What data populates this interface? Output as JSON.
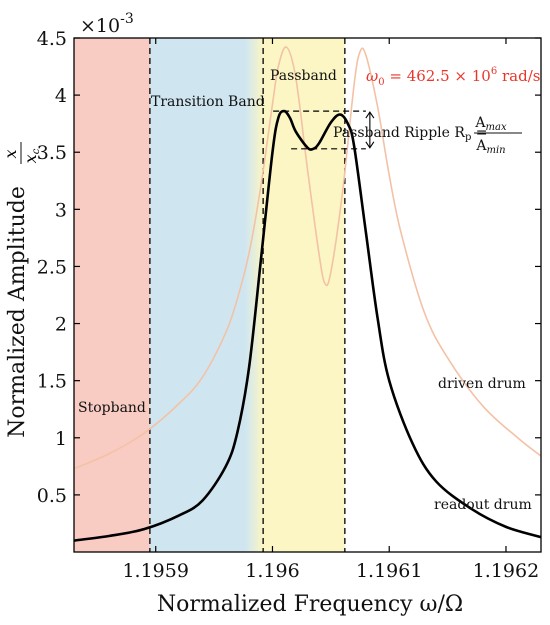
{
  "chart_data": {
    "type": "line",
    "xlabel": "Normalized Frequency ω/Ω",
    "ylabel": "Normalized Amplitude",
    "ylabel_fraction": {
      "num": "x",
      "den": "x",
      "den_sub": "c"
    },
    "y_exponent": {
      "base": "×10",
      "exp": "-3"
    },
    "xlim": [
      1.19583,
      1.19623
    ],
    "ylim": [
      0,
      4.5
    ],
    "x_ticks": [
      {
        "value": 1.1959,
        "label": "1.1959"
      },
      {
        "value": 1.196,
        "label": "1.196"
      },
      {
        "value": 1.1961,
        "label": "1.1961"
      },
      {
        "value": 1.1962,
        "label": "1.1962"
      }
    ],
    "y_ticks": [
      {
        "value": 0.5,
        "label": "0.5"
      },
      {
        "value": 1,
        "label": "1"
      },
      {
        "value": 1.5,
        "label": "1.5"
      },
      {
        "value": 2,
        "label": "2"
      },
      {
        "value": 2.5,
        "label": "2.5"
      },
      {
        "value": 3,
        "label": "3"
      },
      {
        "value": 3.5,
        "label": "3.5"
      },
      {
        "value": 4,
        "label": "4"
      },
      {
        "value": 4.5,
        "label": "4.5"
      }
    ],
    "grid": false,
    "bands": [
      {
        "name": "Stopband",
        "x0": 1.19583,
        "x1": 1.195895,
        "color": "#f8cbc3"
      },
      {
        "name": "Transition Band",
        "x0": 1.195895,
        "x1": 1.195992,
        "color": "#cfe6f1"
      },
      {
        "name": "Passband",
        "x0": 1.195992,
        "x1": 1.196062,
        "color": "#fbf6c4"
      }
    ],
    "vlines": [
      1.195895,
      1.195992,
      1.196062
    ],
    "series": [
      {
        "name": "driven drum",
        "color": "#f3c2a6",
        "points": [
          [
            1.19583,
            0.73
          ],
          [
            1.19586,
            0.86
          ],
          [
            1.19589,
            1.04
          ],
          [
            1.19592,
            1.3
          ],
          [
            1.19594,
            1.53
          ],
          [
            1.19596,
            1.92
          ],
          [
            1.19597,
            2.22
          ],
          [
            1.19598,
            2.62
          ],
          [
            1.19599,
            3.2
          ],
          [
            1.196,
            3.92
          ],
          [
            1.196005,
            4.25
          ],
          [
            1.196012,
            4.42
          ],
          [
            1.19602,
            4.15
          ],
          [
            1.19603,
            3.35
          ],
          [
            1.19604,
            2.6
          ],
          [
            1.196045,
            2.35
          ],
          [
            1.19605,
            2.45
          ],
          [
            1.19606,
            3.15
          ],
          [
            1.19607,
            4.1
          ],
          [
            1.196075,
            4.38
          ],
          [
            1.19608,
            4.35
          ],
          [
            1.19609,
            3.9
          ],
          [
            1.1961,
            3.3
          ],
          [
            1.19611,
            2.8
          ],
          [
            1.19613,
            2.1
          ],
          [
            1.19615,
            1.7
          ],
          [
            1.19618,
            1.28
          ],
          [
            1.19621,
            1.0
          ],
          [
            1.19623,
            0.84
          ]
        ]
      },
      {
        "name": "readout drum",
        "color": "#000000",
        "points": [
          [
            1.19583,
            0.1
          ],
          [
            1.19586,
            0.14
          ],
          [
            1.19589,
            0.2
          ],
          [
            1.19592,
            0.32
          ],
          [
            1.19594,
            0.45
          ],
          [
            1.19596,
            0.75
          ],
          [
            1.19597,
            1.05
          ],
          [
            1.19598,
            1.62
          ],
          [
            1.19599,
            2.55
          ],
          [
            1.196,
            3.5
          ],
          [
            1.196005,
            3.8
          ],
          [
            1.19601,
            3.86
          ],
          [
            1.196015,
            3.8
          ],
          [
            1.19602,
            3.68
          ],
          [
            1.19603,
            3.54
          ],
          [
            1.196035,
            3.53
          ],
          [
            1.19604,
            3.58
          ],
          [
            1.19605,
            3.76
          ],
          [
            1.196058,
            3.83
          ],
          [
            1.196065,
            3.74
          ],
          [
            1.19607,
            3.55
          ],
          [
            1.19608,
            2.8
          ],
          [
            1.19609,
            2.05
          ],
          [
            1.1961,
            1.5
          ],
          [
            1.19612,
            0.95
          ],
          [
            1.19614,
            0.62
          ],
          [
            1.19617,
            0.38
          ],
          [
            1.1962,
            0.22
          ],
          [
            1.19623,
            0.13
          ]
        ]
      }
    ],
    "ripple": {
      "x0": 1.195992,
      "x1": 1.196062,
      "ymax": 3.86,
      "ymin": 3.53,
      "arrow_x": 1.196068
    }
  },
  "labels": {
    "stopband": "Stopband",
    "transition": "Transition Band",
    "passband": "Passband",
    "driven": "driven drum",
    "readout": "readout drum",
    "ripple": {
      "text": "Passband Ripple R",
      "sub": "p",
      "eq": " = ",
      "num": "A",
      "num_sub": "max",
      "den": "A",
      "den_sub": "min"
    },
    "omega0": {
      "sym": "ω",
      "sub": "0",
      "eq": " = 462.5 × 10",
      "sup": "6",
      "unit": " rad/s"
    }
  }
}
